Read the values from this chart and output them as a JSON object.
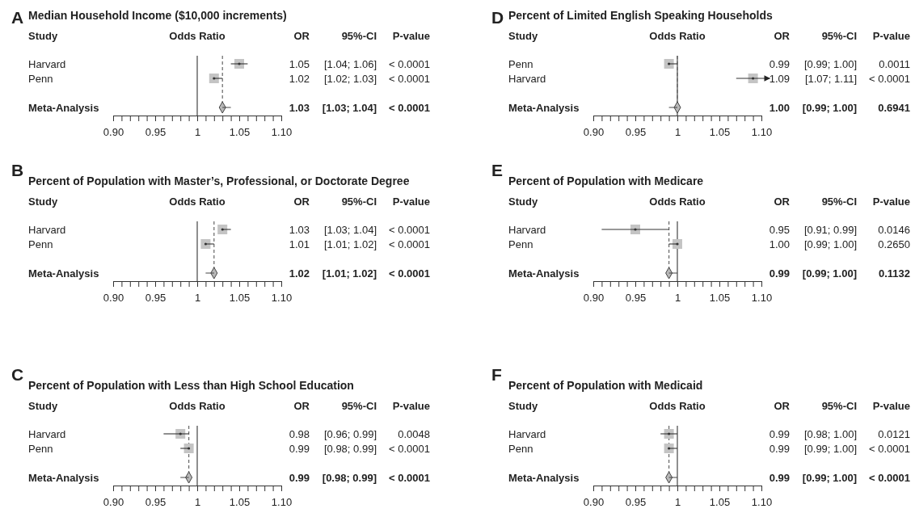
{
  "chart_data": [
    {
      "type": "scatter",
      "orientation": "horizontal",
      "title": "Median Household Income ($10,000 increments)",
      "categories": [
        "Harvard",
        "Penn",
        "Meta-Analysis"
      ],
      "series": [
        {
          "color": "#c4c4c4",
          "marker": "square",
          "values": [
            1.05,
            1.02,
            null
          ],
          "errors": [
            [
              1.04,
              1.06
            ],
            [
              1.02,
              1.03
            ],
            null
          ]
        },
        {
          "color": "#b8b8b8",
          "marker": "diamond",
          "values": [
            null,
            null,
            1.03
          ],
          "errors": [
            null,
            null,
            [
              1.03,
              1.04
            ]
          ]
        }
      ],
      "xlim": [
        0.9,
        1.1
      ],
      "xticks": [
        {
          "value": 0.9,
          "label": "0.90"
        },
        {
          "value": 0.91,
          "label": null
        },
        {
          "value": 0.92,
          "label": null
        },
        {
          "value": 0.93,
          "label": null
        },
        {
          "value": 0.94,
          "label": null
        },
        {
          "value": 0.95,
          "label": "0.95"
        },
        {
          "value": 0.96,
          "label": null
        },
        {
          "value": 0.97,
          "label": null
        },
        {
          "value": 0.98,
          "label": null
        },
        {
          "value": 0.99,
          "label": null
        },
        {
          "value": 1,
          "label": "1"
        },
        {
          "value": 1.01,
          "label": null
        },
        {
          "value": 1.02,
          "label": null
        },
        {
          "value": 1.03,
          "label": null
        },
        {
          "value": 1.04,
          "label": null
        },
        {
          "value": 1.05,
          "label": "1.05"
        },
        {
          "value": 1.06,
          "label": null
        },
        {
          "value": 1.07,
          "label": null
        },
        {
          "value": 1.08,
          "label": null
        },
        {
          "value": 1.09,
          "label": null
        },
        {
          "value": 1.1,
          "label": "1.10"
        }
      ],
      "ref_lines": [
        {
          "axis": "x",
          "value": 1,
          "line_style": "solid"
        },
        {
          "axis": "x",
          "value": 1.03,
          "line_style": "dashed"
        }
      ],
      "annotations": [
        "A",
        "Study",
        "Odds Ratio",
        "OR",
        "95%-CI",
        "P-value",
        "1.05",
        "[1.04; 1.06]",
        "< 0.0001",
        "1.02",
        "[1.02; 1.03]",
        "< 0.0001",
        "1.03",
        "[1.03; 1.04]",
        "< 0.0001"
      ]
    },
    {
      "type": "scatter",
      "orientation": "horizontal",
      "title": "Percent of Population with Master’s, Professional, or Doctorate Degree",
      "categories": [
        "Harvard",
        "Penn",
        "Meta-Analysis"
      ],
      "series": [
        {
          "color": "#c4c4c4",
          "marker": "square",
          "values": [
            1.03,
            1.01,
            null
          ],
          "errors": [
            [
              1.03,
              1.04
            ],
            [
              1.01,
              1.02
            ],
            null
          ]
        },
        {
          "color": "#b8b8b8",
          "marker": "diamond",
          "values": [
            null,
            null,
            1.02
          ],
          "errors": [
            null,
            null,
            [
              1.01,
              1.02
            ]
          ]
        }
      ],
      "xlim": [
        0.9,
        1.1
      ],
      "xticks": [
        {
          "value": 0.9,
          "label": "0.90"
        },
        {
          "value": 0.91,
          "label": null
        },
        {
          "value": 0.92,
          "label": null
        },
        {
          "value": 0.93,
          "label": null
        },
        {
          "value": 0.94,
          "label": null
        },
        {
          "value": 0.95,
          "label": "0.95"
        },
        {
          "value": 0.96,
          "label": null
        },
        {
          "value": 0.97,
          "label": null
        },
        {
          "value": 0.98,
          "label": null
        },
        {
          "value": 0.99,
          "label": null
        },
        {
          "value": 1,
          "label": "1"
        },
        {
          "value": 1.01,
          "label": null
        },
        {
          "value": 1.02,
          "label": null
        },
        {
          "value": 1.03,
          "label": null
        },
        {
          "value": 1.04,
          "label": null
        },
        {
          "value": 1.05,
          "label": "1.05"
        },
        {
          "value": 1.06,
          "label": null
        },
        {
          "value": 1.07,
          "label": null
        },
        {
          "value": 1.08,
          "label": null
        },
        {
          "value": 1.09,
          "label": null
        },
        {
          "value": 1.1,
          "label": "1.10"
        }
      ],
      "ref_lines": [
        {
          "axis": "x",
          "value": 1,
          "line_style": "solid"
        },
        {
          "axis": "x",
          "value": 1.02,
          "line_style": "dashed"
        }
      ],
      "annotations": [
        "B",
        "Study",
        "Odds Ratio",
        "OR",
        "95%-CI",
        "P-value",
        "1.03",
        "[1.03; 1.04]",
        "< 0.0001",
        "1.01",
        "[1.01; 1.02]",
        "< 0.0001",
        "1.02",
        "[1.01; 1.02]",
        "< 0.0001"
      ]
    },
    {
      "type": "scatter",
      "orientation": "horizontal",
      "title": "Percent of Population with Less than High School Education",
      "categories": [
        "Harvard",
        "Penn",
        "Meta-Analysis"
      ],
      "series": [
        {
          "color": "#c4c4c4",
          "marker": "square",
          "values": [
            0.98,
            0.99,
            null
          ],
          "errors": [
            [
              0.96,
              0.99
            ],
            [
              0.98,
              0.99
            ],
            null
          ]
        },
        {
          "color": "#b8b8b8",
          "marker": "diamond",
          "values": [
            null,
            null,
            0.99
          ],
          "errors": [
            null,
            null,
            [
              0.98,
              0.99
            ]
          ]
        }
      ],
      "xlim": [
        0.9,
        1.1
      ],
      "xticks": [
        {
          "value": 0.9,
          "label": "0.90"
        },
        {
          "value": 0.91,
          "label": null
        },
        {
          "value": 0.92,
          "label": null
        },
        {
          "value": 0.93,
          "label": null
        },
        {
          "value": 0.94,
          "label": null
        },
        {
          "value": 0.95,
          "label": "0.95"
        },
        {
          "value": 0.96,
          "label": null
        },
        {
          "value": 0.97,
          "label": null
        },
        {
          "value": 0.98,
          "label": null
        },
        {
          "value": 0.99,
          "label": null
        },
        {
          "value": 1,
          "label": "1"
        },
        {
          "value": 1.01,
          "label": null
        },
        {
          "value": 1.02,
          "label": null
        },
        {
          "value": 1.03,
          "label": null
        },
        {
          "value": 1.04,
          "label": null
        },
        {
          "value": 1.05,
          "label": "1.05"
        },
        {
          "value": 1.06,
          "label": null
        },
        {
          "value": 1.07,
          "label": null
        },
        {
          "value": 1.08,
          "label": null
        },
        {
          "value": 1.09,
          "label": null
        },
        {
          "value": 1.1,
          "label": "1.10"
        }
      ],
      "ref_lines": [
        {
          "axis": "x",
          "value": 1,
          "line_style": "solid"
        },
        {
          "axis": "x",
          "value": 0.99,
          "line_style": "dashed"
        }
      ],
      "annotations": [
        "C",
        "Study",
        "Odds Ratio",
        "OR",
        "95%-CI",
        "P-value",
        "0.98",
        "[0.96; 0.99]",
        "0.0048",
        "0.99",
        "[0.98; 0.99]",
        "< 0.0001",
        "0.99",
        "[0.98; 0.99]",
        "< 0.0001"
      ]
    },
    {
      "type": "scatter",
      "orientation": "horizontal",
      "title": "Percent of Limited English Speaking Households",
      "categories": [
        "Penn",
        "Harvard",
        "Meta-Analysis"
      ],
      "series": [
        {
          "color": "#c4c4c4",
          "marker": "square",
          "values": [
            0.99,
            1.09,
            null
          ],
          "errors": [
            [
              0.99,
              1.0
            ],
            [
              1.07,
              1.11
            ],
            null
          ]
        },
        {
          "color": "#b8b8b8",
          "marker": "diamond",
          "values": [
            null,
            null,
            1.0
          ],
          "errors": [
            null,
            null,
            [
              0.99,
              1.0
            ]
          ]
        }
      ],
      "xlim": [
        0.9,
        1.1
      ],
      "xticks": [
        {
          "value": 0.9,
          "label": "0.90"
        },
        {
          "value": 0.91,
          "label": null
        },
        {
          "value": 0.92,
          "label": null
        },
        {
          "value": 0.93,
          "label": null
        },
        {
          "value": 0.94,
          "label": null
        },
        {
          "value": 0.95,
          "label": "0.95"
        },
        {
          "value": 0.96,
          "label": null
        },
        {
          "value": 0.97,
          "label": null
        },
        {
          "value": 0.98,
          "label": null
        },
        {
          "value": 0.99,
          "label": null
        },
        {
          "value": 1,
          "label": "1"
        },
        {
          "value": 1.01,
          "label": null
        },
        {
          "value": 1.02,
          "label": null
        },
        {
          "value": 1.03,
          "label": null
        },
        {
          "value": 1.04,
          "label": null
        },
        {
          "value": 1.05,
          "label": "1.05"
        },
        {
          "value": 1.06,
          "label": null
        },
        {
          "value": 1.07,
          "label": null
        },
        {
          "value": 1.08,
          "label": null
        },
        {
          "value": 1.09,
          "label": null
        },
        {
          "value": 1.1,
          "label": "1.10"
        }
      ],
      "ref_lines": [
        {
          "axis": "x",
          "value": 1,
          "line_style": "solid"
        },
        {
          "axis": "x",
          "value": 1.0,
          "line_style": "dashed"
        }
      ],
      "annotations": [
        "D",
        "Study",
        "Odds Ratio",
        "OR",
        "95%-CI",
        "P-value",
        "0.99",
        "[0.99; 1.00]",
        "0.0011",
        "1.09",
        "[1.07; 1.11]",
        "< 0.0001",
        "1.00",
        "[0.99; 1.00]",
        "0.6941"
      ]
    },
    {
      "type": "scatter",
      "orientation": "horizontal",
      "title": "Percent of Population with Medicare",
      "categories": [
        "Harvard",
        "Penn",
        "Meta-Analysis"
      ],
      "series": [
        {
          "color": "#c4c4c4",
          "marker": "square",
          "values": [
            0.95,
            1.0,
            null
          ],
          "errors": [
            [
              0.91,
              0.99
            ],
            [
              0.99,
              1.0
            ],
            null
          ]
        },
        {
          "color": "#b8b8b8",
          "marker": "diamond",
          "values": [
            null,
            null,
            0.99
          ],
          "errors": [
            null,
            null,
            [
              0.99,
              1.0
            ]
          ]
        }
      ],
      "xlim": [
        0.9,
        1.1
      ],
      "xticks": [
        {
          "value": 0.9,
          "label": "0.90"
        },
        {
          "value": 0.91,
          "label": null
        },
        {
          "value": 0.92,
          "label": null
        },
        {
          "value": 0.93,
          "label": null
        },
        {
          "value": 0.94,
          "label": null
        },
        {
          "value": 0.95,
          "label": "0.95"
        },
        {
          "value": 0.96,
          "label": null
        },
        {
          "value": 0.97,
          "label": null
        },
        {
          "value": 0.98,
          "label": null
        },
        {
          "value": 0.99,
          "label": null
        },
        {
          "value": 1,
          "label": "1"
        },
        {
          "value": 1.01,
          "label": null
        },
        {
          "value": 1.02,
          "label": null
        },
        {
          "value": 1.03,
          "label": null
        },
        {
          "value": 1.04,
          "label": null
        },
        {
          "value": 1.05,
          "label": "1.05"
        },
        {
          "value": 1.06,
          "label": null
        },
        {
          "value": 1.07,
          "label": null
        },
        {
          "value": 1.08,
          "label": null
        },
        {
          "value": 1.09,
          "label": null
        },
        {
          "value": 1.1,
          "label": "1.10"
        }
      ],
      "ref_lines": [
        {
          "axis": "x",
          "value": 1,
          "line_style": "solid"
        },
        {
          "axis": "x",
          "value": 0.99,
          "line_style": "dashed"
        }
      ],
      "annotations": [
        "E",
        "Study",
        "Odds Ratio",
        "OR",
        "95%-CI",
        "P-value",
        "0.95",
        "[0.91; 0.99]",
        "0.0146",
        "1.00",
        "[0.99; 1.00]",
        "0.2650",
        "0.99",
        "[0.99; 1.00]",
        "0.1132"
      ]
    },
    {
      "type": "scatter",
      "orientation": "horizontal",
      "title": "Percent of Population with Medicaid",
      "categories": [
        "Harvard",
        "Penn",
        "Meta-Analysis"
      ],
      "series": [
        {
          "color": "#c4c4c4",
          "marker": "square",
          "values": [
            0.99,
            0.99,
            null
          ],
          "errors": [
            [
              0.98,
              1.0
            ],
            [
              0.99,
              1.0
            ],
            null
          ]
        },
        {
          "color": "#b8b8b8",
          "marker": "diamond",
          "values": [
            null,
            null,
            0.99
          ],
          "errors": [
            null,
            null,
            [
              0.99,
              1.0
            ]
          ]
        }
      ],
      "xlim": [
        0.9,
        1.1
      ],
      "xticks": [
        {
          "value": 0.9,
          "label": "0.90"
        },
        {
          "value": 0.91,
          "label": null
        },
        {
          "value": 0.92,
          "label": null
        },
        {
          "value": 0.93,
          "label": null
        },
        {
          "value": 0.94,
          "label": null
        },
        {
          "value": 0.95,
          "label": "0.95"
        },
        {
          "value": 0.96,
          "label": null
        },
        {
          "value": 0.97,
          "label": null
        },
        {
          "value": 0.98,
          "label": null
        },
        {
          "value": 0.99,
          "label": null
        },
        {
          "value": 1,
          "label": "1"
        },
        {
          "value": 1.01,
          "label": null
        },
        {
          "value": 1.02,
          "label": null
        },
        {
          "value": 1.03,
          "label": null
        },
        {
          "value": 1.04,
          "label": null
        },
        {
          "value": 1.05,
          "label": "1.05"
        },
        {
          "value": 1.06,
          "label": null
        },
        {
          "value": 1.07,
          "label": null
        },
        {
          "value": 1.08,
          "label": null
        },
        {
          "value": 1.09,
          "label": null
        },
        {
          "value": 1.1,
          "label": "1.10"
        }
      ],
      "ref_lines": [
        {
          "axis": "x",
          "value": 1,
          "line_style": "solid"
        },
        {
          "axis": "x",
          "value": 0.99,
          "line_style": "dashed"
        }
      ],
      "annotations": [
        "F",
        "Study",
        "Odds Ratio",
        "OR",
        "95%-CI",
        "P-value",
        "0.99",
        "[0.98; 1.00]",
        "0.0121",
        "0.99",
        "[0.99; 1.00]",
        "< 0.0001",
        "0.99",
        "[0.99; 1.00]",
        "< 0.0001"
      ]
    }
  ]
}
